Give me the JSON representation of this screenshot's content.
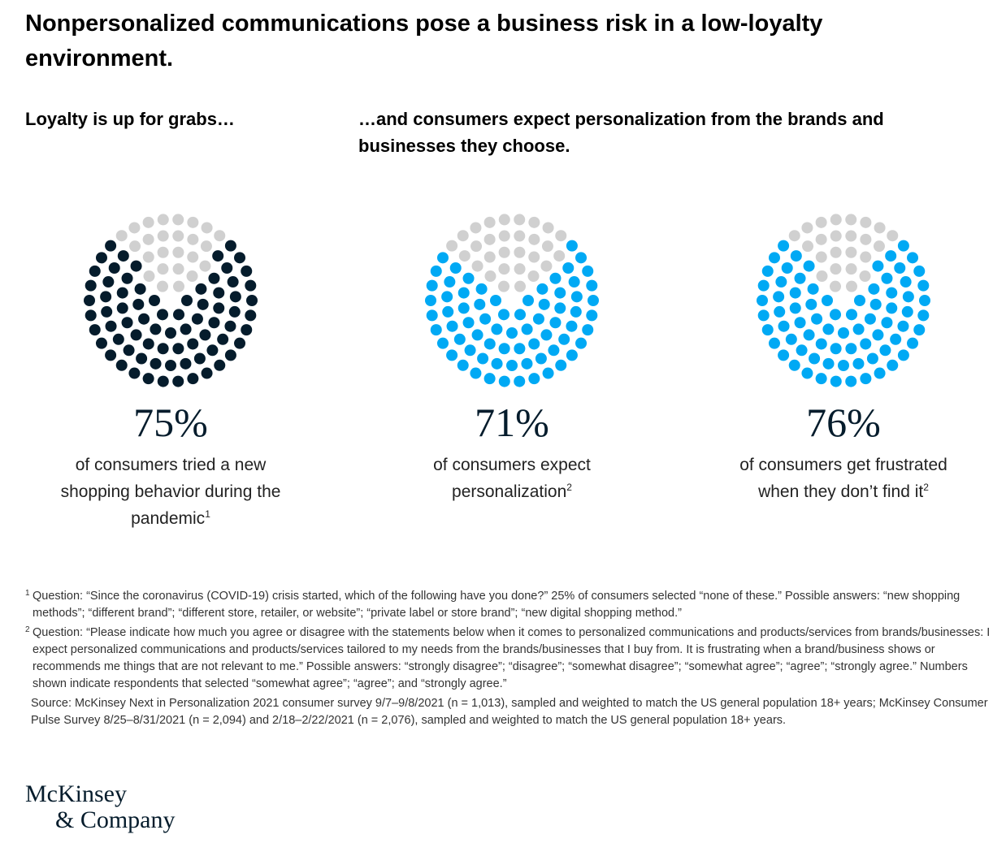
{
  "title": "Nonpersonalized communications pose a business risk in a low-loyalty environment.",
  "subtitles": [
    "Loyalty is up for grabs…",
    "…and consumers expect personalization from the brands and businesses they choose."
  ],
  "colors": {
    "dark": "#051c2c",
    "blue": "#00a9f4",
    "gray": "#d0d0d0"
  },
  "chart_data": {
    "type": "pie",
    "charts": [
      {
        "value": 75,
        "label": "75%",
        "text": "of consumers tried a new shopping behavior during the pandemic",
        "footnote": "1",
        "color": "#051c2c"
      },
      {
        "value": 71,
        "label": "71%",
        "text": "of consumers expect personalization",
        "footnote": "2",
        "color": "#00a9f4"
      },
      {
        "value": 76,
        "label": "76%",
        "text": "of consumers get frustrated when they don’t find it",
        "footnote": "2",
        "color": "#00a9f4"
      }
    ]
  },
  "footnotes": [
    {
      "mark": "1",
      "text": "Question: “Since the coronavirus (COVID-19) crisis started, which of the following have you done?” 25% of consumers selected “none of these.” Possible answers: “new shopping methods”; “different brand”; “different store, retailer, or website”; “private label or store brand”; “new digital shopping method.”"
    },
    {
      "mark": "2",
      "text": "Question: “Please indicate how much you agree or disagree with the statements below when it comes to personalized communications and products/services from brands/businesses: I expect personalized communications and products/services tailored to my needs from the brands/businesses that I buy from. It is frustrating when a brand/business shows or recommends me things that are not relevant to me.” Possible answers: “strongly disagree”; “disagree”; “somewhat disagree”; “somewhat agree”; “agree”; “strongly agree.” Numbers shown indicate respondents that selected “somewhat agree”; “agree”; and “strongly agree.”"
    }
  ],
  "source": "Source: McKinsey Next in Personalization 2021 consumer survey 9/7–9/8/2021 (n = 1,013), sampled and weighted to match the US general population 18+ years; McKinsey Consumer Pulse Survey 8/25–8/31/2021 (n = 2,094) and 2/18–2/22/2021 (n = 2,076), sampled and weighted to match the US general population 18+ years.",
  "logo": {
    "line1": "McKinsey",
    "line2": "& Company"
  }
}
